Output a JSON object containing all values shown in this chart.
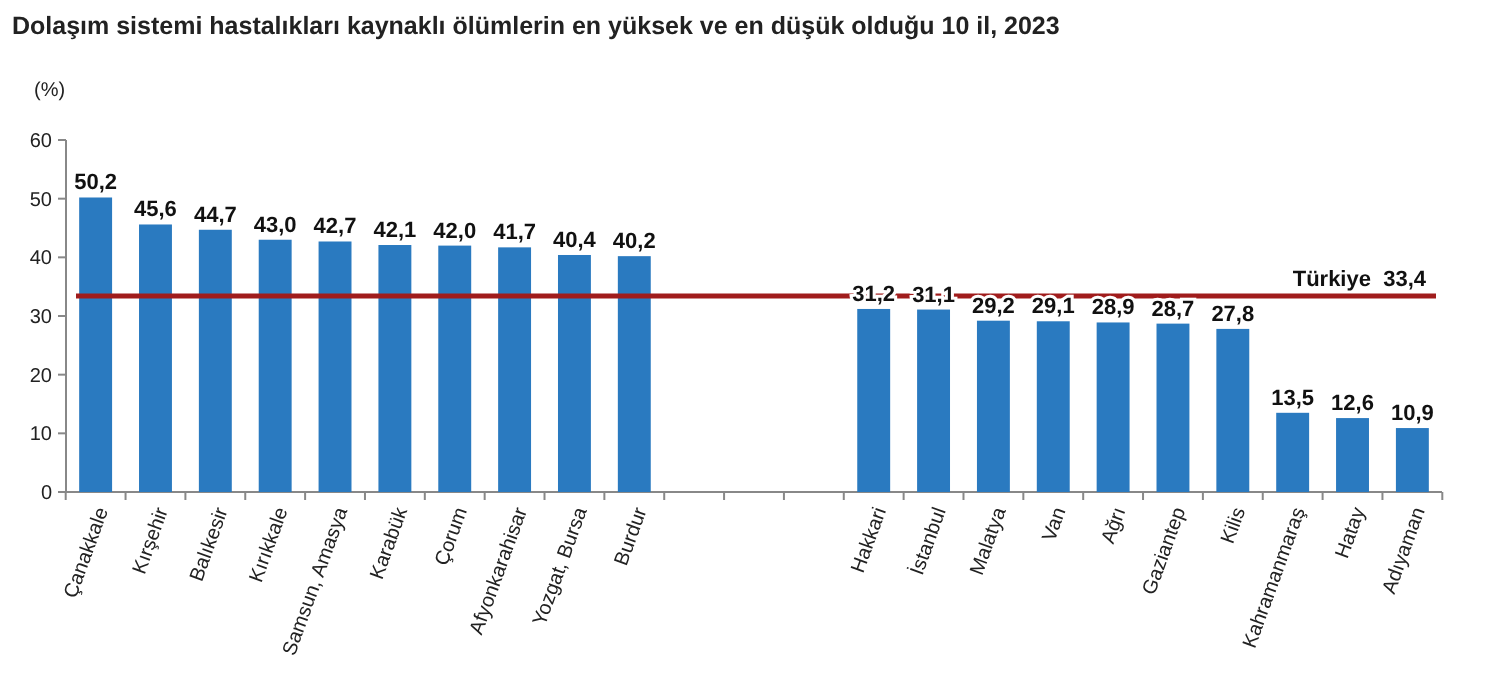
{
  "chart_data": {
    "type": "bar",
    "title": "Dolaşım sistemi hastalıkları kaynaklı ölümlerin en yüksek ve en düşük olduğu 10 il, 2023",
    "ylabel": "(%)",
    "categories": [
      "Çanakkale",
      "Kırşehir",
      "Balıkesir",
      "Kırıkkale",
      "Samsun, Amasya",
      "Karabük",
      "Çorum",
      "Afyonkarahisar",
      "Yozgat, Bursa",
      "Burdur",
      null,
      null,
      null,
      "Hakkari",
      "İstanbul",
      "Malatya",
      "Van",
      "Ağrı",
      "Gaziantep",
      "Kilis",
      "Kahramanmaraş",
      "Hatay",
      "Adıyaman"
    ],
    "values": [
      50.2,
      45.6,
      44.7,
      43.0,
      42.7,
      42.1,
      42.0,
      41.7,
      40.4,
      40.2,
      null,
      null,
      null,
      31.2,
      31.1,
      29.2,
      29.1,
      28.9,
      28.7,
      27.8,
      13.5,
      12.6,
      10.9
    ],
    "value_labels": [
      "50,2",
      "45,6",
      "44,7",
      "43,0",
      "42,7",
      "42,1",
      "42,0",
      "41,7",
      "40,4",
      "40,2",
      null,
      null,
      null,
      "31,2",
      "31,1",
      "29,2",
      "29,1",
      "28,9",
      "28,7",
      "27,8",
      "13,5",
      "12,6",
      "10,9"
    ],
    "color": "#2a7ac0",
    "ylim": [
      0,
      60
    ],
    "yticks": [
      0,
      10,
      20,
      30,
      40,
      50,
      60
    ],
    "grid": false,
    "ref_lines": [
      {
        "axis": "y",
        "value": 33.4,
        "label": "Türkiye  33,4",
        "color": "#a01c1c"
      }
    ]
  }
}
